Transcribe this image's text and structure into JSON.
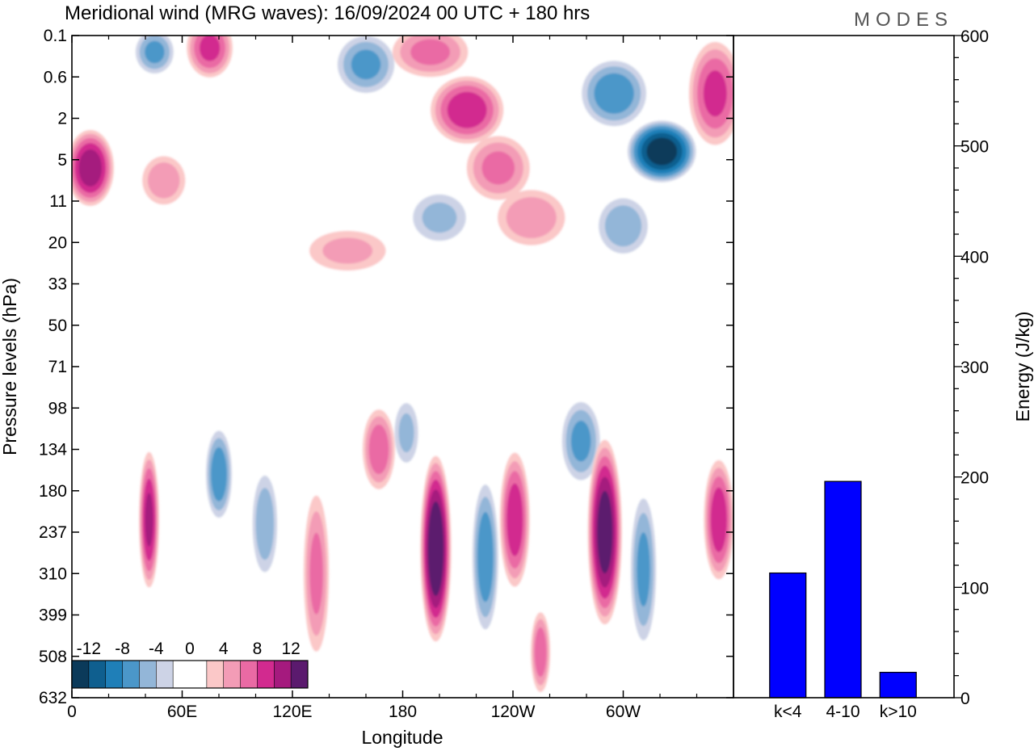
{
  "title": "Meridional wind (MRG waves):  16/09/2024  00 UTC  + 180 hrs",
  "brand": "MODES",
  "chart_data": [
    {
      "type": "heatmap",
      "name": "meridional-wind-contours",
      "title": "Meridional wind (MRG waves):  16/09/2024  00 UTC  + 180 hrs",
      "xlabel": "Longitude",
      "ylabel": "Pressure levels (hPa)",
      "x_ticks": [
        "0",
        "60E",
        "120E",
        "180",
        "120W",
        "60W"
      ],
      "y_ticks": [
        "0.1",
        "0.6",
        "2",
        "5",
        "11",
        "20",
        "33",
        "50",
        "71",
        "98",
        "134",
        "180",
        "237",
        "310",
        "399",
        "508",
        "632"
      ],
      "colorbar_ticks": [
        "-12",
        "-8",
        "-4",
        "0",
        "4",
        "8",
        "12"
      ],
      "colorbar_colors": [
        "#0b3a5a",
        "#0f5f8f",
        "#1f7fb8",
        "#4b97c9",
        "#93b6d8",
        "#cdd3e6",
        "#ffffff",
        "#ffffff",
        "#fbc8c8",
        "#f39cb6",
        "#ea6aa4",
        "#d22a8f",
        "#a51a7e",
        "#5b1a6e"
      ],
      "blobs": [
        {
          "lon": 10,
          "lev": 3.2,
          "v": 11,
          "w": 14,
          "h": 1.0
        },
        {
          "lon": 50,
          "lev": 3.5,
          "v": 5,
          "w": 14,
          "h": 0.7
        },
        {
          "lon": 45,
          "lev": 0.4,
          "v": -6,
          "w": 12,
          "h": 0.6
        },
        {
          "lon": 75,
          "lev": 0.3,
          "v": 8,
          "w": 14,
          "h": 0.8
        },
        {
          "lon": 160,
          "lev": 0.7,
          "v": -6,
          "w": 18,
          "h": 0.8
        },
        {
          "lon": 195,
          "lev": 0.4,
          "v": 6,
          "w": 24,
          "h": 0.7
        },
        {
          "lon": 215,
          "lev": 1.8,
          "v": 9,
          "w": 22,
          "h": 0.9
        },
        {
          "lon": 232,
          "lev": 3.2,
          "v": 6,
          "w": 20,
          "h": 0.9
        },
        {
          "lon": 295,
          "lev": 1.4,
          "v": -7,
          "w": 20,
          "h": 0.9
        },
        {
          "lon": 321,
          "lev": 2.8,
          "v": -13,
          "w": 20,
          "h": 0.8
        },
        {
          "lon": 350,
          "lev": 1.4,
          "v": 8,
          "w": 16,
          "h": 1.4
        },
        {
          "lon": 250,
          "lev": 4.4,
          "v": 5,
          "w": 22,
          "h": 0.8
        },
        {
          "lon": 200,
          "lev": 4.4,
          "v": -4,
          "w": 18,
          "h": 0.7
        },
        {
          "lon": 300,
          "lev": 4.6,
          "v": -5,
          "w": 16,
          "h": 0.8
        },
        {
          "lon": 150,
          "lev": 5.2,
          "v": 4,
          "w": 26,
          "h": 0.6
        },
        {
          "lon": 80,
          "lev": 10.6,
          "v": -7,
          "w": 8,
          "h": 1.2
        },
        {
          "lon": 167,
          "lev": 10.0,
          "v": 7,
          "w": 10,
          "h": 1.1
        },
        {
          "lon": 182,
          "lev": 9.6,
          "v": -4,
          "w": 8,
          "h": 0.9
        },
        {
          "lon": 277,
          "lev": 9.8,
          "v": -6,
          "w": 12,
          "h": 1.1
        },
        {
          "lon": 42,
          "lev": 11.7,
          "v": 10,
          "w": 6,
          "h": 1.8
        },
        {
          "lon": 105,
          "lev": 11.8,
          "v": -5,
          "w": 8,
          "h": 1.4
        },
        {
          "lon": 133,
          "lev": 13.0,
          "v": 6,
          "w": 8,
          "h": 2.2
        },
        {
          "lon": 198,
          "lev": 12.4,
          "v": 14,
          "w": 9,
          "h": 2.4
        },
        {
          "lon": 225,
          "lev": 12.6,
          "v": -7,
          "w": 8,
          "h": 2.0
        },
        {
          "lon": 241,
          "lev": 11.7,
          "v": 9,
          "w": 9,
          "h": 1.8
        },
        {
          "lon": 290,
          "lev": 12.0,
          "v": 13,
          "w": 10,
          "h": 2.4
        },
        {
          "lon": 311,
          "lev": 12.9,
          "v": -6,
          "w": 8,
          "h": 2.0
        },
        {
          "lon": 352,
          "lev": 11.7,
          "v": 9,
          "w": 9,
          "h": 1.6
        },
        {
          "lon": 255,
          "lev": 14.9,
          "v": 7,
          "w": 6,
          "h": 1.1
        }
      ]
    },
    {
      "type": "bar",
      "name": "energy-bars",
      "categories": [
        "k<4",
        "4-10",
        "k>10"
      ],
      "values": [
        113,
        196,
        23
      ],
      "ylabel": "Energy (J/kg)",
      "ylim": [
        0,
        600
      ],
      "y_ticks": [
        0,
        100,
        200,
        300,
        400,
        500,
        600
      ],
      "bar_color": "#0000ff"
    }
  ]
}
